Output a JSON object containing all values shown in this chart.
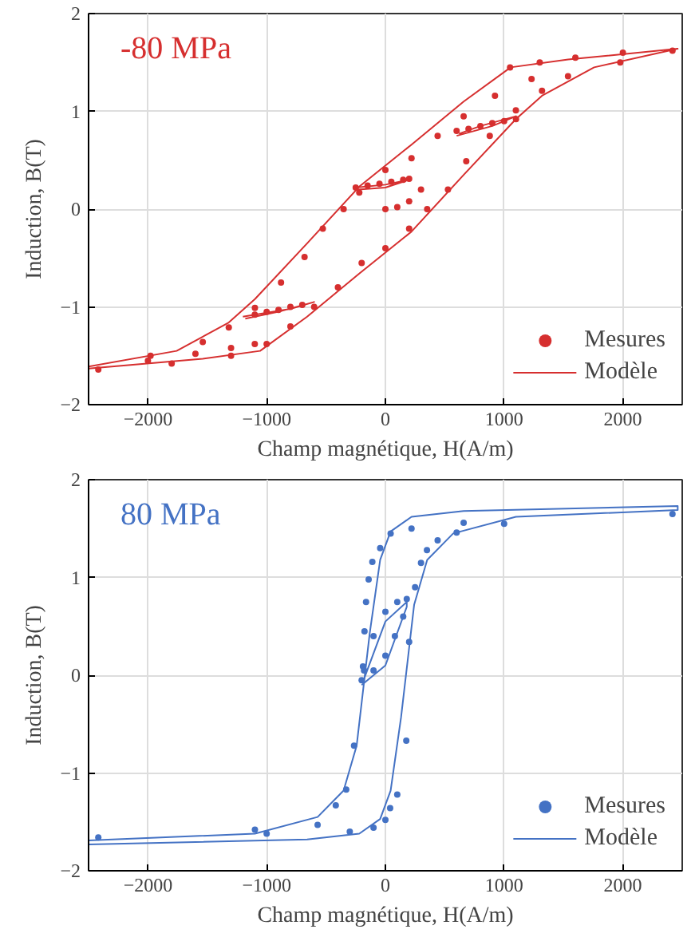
{
  "chart_data": [
    {
      "type": "scatter",
      "xlabel": "Champ magnétique, H(A/m)",
      "ylabel": "Induction, B(T)",
      "annotations": [
        "-80 MPa"
      ],
      "xlim": [
        -2500,
        2500
      ],
      "ylim": [
        -2,
        2
      ],
      "xticks": [
        -2000,
        -1000,
        0,
        1000,
        2000
      ],
      "yticks": [
        -2,
        -1,
        0,
        1,
        2
      ],
      "grid": true,
      "legend": "bottom right",
      "line_style": "solid",
      "series": [
        {
          "name": "Mesures",
          "marker": "circle",
          "color": "#d62f2f",
          "x": [
            2418,
            1231,
            923,
            659,
            440,
            220,
            0,
            -220,
            -352,
            -527,
            -681,
            -879,
            -1099,
            -1319,
            -1538,
            -1978,
            -2418,
            -1800,
            -1300,
            -1000,
            -800,
            -600,
            -400,
            -200,
            0,
            200,
            352,
            527,
            681,
            879,
            1099,
            1319,
            1538,
            1978,
            -250,
            -150,
            -50,
            50,
            150,
            200,
            0,
            100,
            200,
            300,
            -1100,
            -1000,
            -900,
            -800,
            -700,
            600,
            700,
            800,
            900,
            1000,
            1100,
            1050,
            1300,
            1600,
            2000,
            -2000,
            -1600,
            -1300,
            -1100
          ],
          "values": [
            1.62,
            1.33,
            1.16,
            0.95,
            0.75,
            0.52,
            0.4,
            0.17,
            0.0,
            -0.2,
            -0.49,
            -0.75,
            -1.01,
            -1.21,
            -1.36,
            -1.5,
            -1.64,
            -1.58,
            -1.5,
            -1.38,
            -1.2,
            -1.0,
            -0.8,
            -0.55,
            -0.4,
            -0.2,
            0.0,
            0.2,
            0.49,
            0.75,
            1.01,
            1.21,
            1.36,
            1.5,
            0.22,
            0.24,
            0.26,
            0.28,
            0.3,
            0.31,
            0.0,
            0.02,
            0.08,
            0.2,
            -1.08,
            -1.05,
            -1.03,
            -1.0,
            -0.98,
            0.8,
            0.82,
            0.85,
            0.88,
            0.9,
            0.92,
            1.45,
            1.5,
            1.55,
            1.6,
            -1.55,
            -1.48,
            -1.42,
            -1.38
          ]
        },
        {
          "name": "Modèle",
          "type": "line",
          "color": "#d62f2f",
          "x": [
            -2500,
            -1539,
            -1055,
            -659,
            -220,
            220,
            659,
            1099,
            1319,
            1758,
            2462,
            2462,
            1539,
            1055,
            659,
            220,
            -220,
            -659,
            -1099,
            -1319,
            -1758,
            -2500
          ],
          "values": [
            -1.63,
            -1.53,
            -1.45,
            -1.1,
            -0.66,
            -0.23,
            0.35,
            0.92,
            1.16,
            1.45,
            1.64,
            1.64,
            1.53,
            1.45,
            1.1,
            0.66,
            0.23,
            -0.35,
            -0.92,
            -1.16,
            -1.45,
            -1.61
          ]
        },
        {
          "type": "line",
          "color": "#d62f2f",
          "x": [
            -250,
            0,
            200,
            0,
            -230
          ],
          "values": [
            0.22,
            0.25,
            0.3,
            0.22,
            0.2
          ]
        },
        {
          "type": "line",
          "color": "#d62f2f",
          "x": [
            -1200,
            -800,
            -600,
            -900,
            -1180
          ],
          "values": [
            -1.1,
            -1.02,
            -0.95,
            -1.05,
            -1.12
          ]
        },
        {
          "type": "line",
          "color": "#d62f2f",
          "x": [
            600,
            900,
            1100,
            800,
            620
          ],
          "values": [
            0.75,
            0.85,
            0.95,
            0.85,
            0.77
          ]
        }
      ]
    },
    {
      "type": "scatter",
      "xlabel": "Champ magnétique, H(A/m)",
      "ylabel": "Induction, B(T)",
      "annotations": [
        "80 MPa"
      ],
      "xlim": [
        -2500,
        2500
      ],
      "ylim": [
        -2,
        2
      ],
      "xticks": [
        -2000,
        -1000,
        0,
        1000,
        2000
      ],
      "yticks": [
        -2,
        -1,
        0,
        1,
        2
      ],
      "grid": true,
      "legend": "bottom right",
      "line_style": "solid",
      "series": [
        {
          "name": "Mesures",
          "marker": "circle",
          "color": "#4472c4",
          "x": [
            2418,
            659,
            220,
            44,
            -44,
            -110,
            -141,
            -163,
            -176,
            -189,
            -264,
            -330,
            -418,
            -571,
            -1099,
            -2418,
            -1000,
            -300,
            -100,
            0,
            40,
            100,
            176,
            200,
            250,
            300,
            350,
            440,
            600,
            1000,
            -200,
            -100,
            0,
            80,
            150,
            180,
            100,
            0,
            -100,
            -180
          ],
          "values": [
            1.65,
            1.56,
            1.5,
            1.45,
            1.3,
            1.16,
            0.98,
            0.75,
            0.45,
            0.09,
            -0.72,
            -1.17,
            -1.33,
            -1.53,
            -1.58,
            -1.66,
            -1.62,
            -1.6,
            -1.56,
            -1.48,
            -1.36,
            -1.22,
            -0.67,
            0.34,
            0.9,
            1.15,
            1.28,
            1.38,
            1.46,
            1.55,
            -0.05,
            0.05,
            0.2,
            0.4,
            0.6,
            0.78,
            0.75,
            0.65,
            0.4,
            0.05
          ]
        },
        {
          "name": "Modèle",
          "type": "line",
          "color": "#4472c4",
          "x": [
            -2500,
            -659,
            -220,
            -44,
            44,
            132,
            198,
            242,
            352,
            571,
            1099,
            2462,
            2462,
            659,
            220,
            44,
            -44,
            -132,
            -198,
            -242,
            -352,
            -571,
            -1099,
            -2500
          ],
          "values": [
            -1.73,
            -1.68,
            -1.62,
            -1.47,
            -1.18,
            -0.43,
            0.26,
            0.72,
            1.18,
            1.45,
            1.62,
            1.69,
            1.73,
            1.68,
            1.62,
            1.47,
            1.18,
            0.43,
            -0.26,
            -0.72,
            -1.18,
            -1.45,
            -1.62,
            -1.69
          ]
        },
        {
          "type": "line",
          "color": "#4472c4",
          "x": [
            -200,
            0,
            180,
            180,
            0,
            -190
          ],
          "values": [
            -0.1,
            0.1,
            0.7,
            0.75,
            0.55,
            -0.07
          ]
        }
      ]
    }
  ]
}
